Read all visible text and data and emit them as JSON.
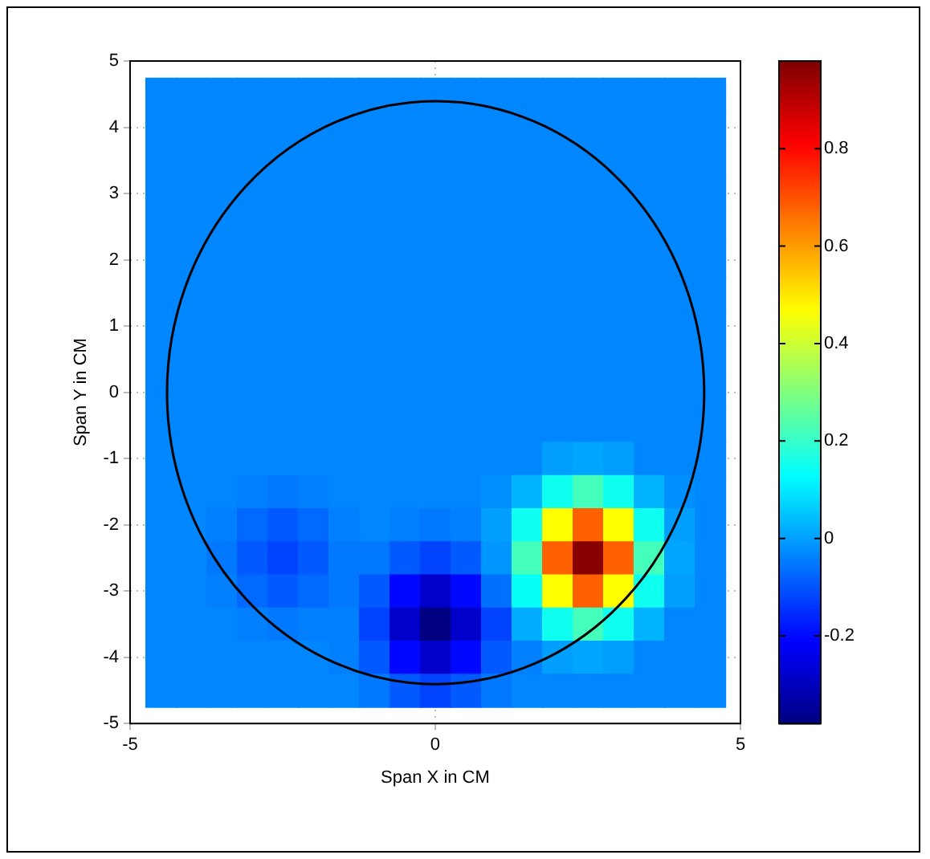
{
  "chart_data": {
    "type": "heatmap",
    "xlabel": "Span X in CM",
    "ylabel": "Span Y in CM",
    "x": [
      -4.5,
      -4,
      -3.5,
      -3,
      -2.5,
      -2,
      -1.5,
      -1,
      -0.5,
      0,
      0.5,
      1,
      1.5,
      2,
      2.5,
      3,
      3.5,
      4,
      4.5
    ],
    "y": [
      4.5,
      4,
      3.5,
      3,
      2.5,
      2,
      1.5,
      1,
      0.5,
      0,
      -0.5,
      -1,
      -1.5,
      -2,
      -2.5,
      -3,
      -3.5,
      -4,
      -4.5
    ],
    "cells": [
      [
        -0.03,
        -0.03,
        -0.03,
        -0.03,
        -0.03,
        -0.03,
        -0.03,
        -0.03,
        -0.03,
        -0.03,
        -0.03,
        -0.03,
        -0.03,
        -0.03,
        -0.03,
        -0.03,
        -0.03,
        -0.03,
        -0.03
      ],
      [
        -0.03,
        -0.03,
        -0.03,
        -0.03,
        -0.03,
        -0.03,
        -0.03,
        -0.03,
        -0.03,
        -0.03,
        -0.03,
        -0.03,
        -0.03,
        -0.03,
        -0.03,
        -0.03,
        -0.03,
        -0.03,
        -0.03
      ],
      [
        -0.03,
        -0.03,
        -0.03,
        -0.03,
        -0.03,
        -0.03,
        -0.03,
        -0.03,
        -0.03,
        -0.03,
        -0.03,
        -0.03,
        -0.03,
        -0.03,
        -0.03,
        -0.03,
        -0.03,
        -0.03,
        -0.03
      ],
      [
        -0.03,
        -0.03,
        -0.03,
        -0.03,
        -0.03,
        -0.03,
        -0.03,
        -0.03,
        -0.03,
        -0.03,
        -0.03,
        -0.03,
        -0.03,
        -0.03,
        -0.03,
        -0.03,
        -0.03,
        -0.03,
        -0.03
      ],
      [
        -0.03,
        -0.03,
        -0.03,
        -0.03,
        -0.03,
        -0.03,
        -0.03,
        -0.03,
        -0.03,
        -0.03,
        -0.03,
        -0.03,
        -0.03,
        -0.03,
        -0.03,
        -0.03,
        -0.03,
        -0.03,
        -0.03
      ],
      [
        -0.03,
        -0.03,
        -0.03,
        -0.03,
        -0.03,
        -0.03,
        -0.03,
        -0.03,
        -0.03,
        -0.03,
        -0.03,
        -0.03,
        -0.03,
        -0.03,
        -0.03,
        -0.03,
        -0.03,
        -0.03,
        -0.03
      ],
      [
        -0.03,
        -0.03,
        -0.03,
        -0.03,
        -0.03,
        -0.03,
        -0.03,
        -0.03,
        -0.03,
        -0.03,
        -0.03,
        -0.03,
        -0.03,
        -0.03,
        -0.03,
        -0.03,
        -0.03,
        -0.03,
        -0.03
      ],
      [
        -0.03,
        -0.03,
        -0.03,
        -0.03,
        -0.03,
        -0.03,
        -0.03,
        -0.03,
        -0.03,
        -0.03,
        -0.03,
        -0.03,
        -0.03,
        -0.03,
        -0.03,
        -0.03,
        -0.03,
        -0.03,
        -0.03
      ],
      [
        -0.03,
        -0.03,
        -0.03,
        -0.03,
        -0.03,
        -0.03,
        -0.03,
        -0.03,
        -0.03,
        -0.03,
        -0.03,
        -0.03,
        -0.03,
        -0.03,
        -0.03,
        -0.03,
        -0.03,
        -0.03,
        -0.03
      ],
      [
        -0.03,
        -0.03,
        -0.03,
        -0.03,
        -0.03,
        -0.03,
        -0.03,
        -0.03,
        -0.03,
        -0.03,
        -0.03,
        -0.03,
        -0.03,
        -0.03,
        -0.03,
        -0.03,
        -0.03,
        -0.03,
        -0.03
      ],
      [
        -0.03,
        -0.03,
        -0.03,
        -0.03,
        -0.03,
        -0.03,
        -0.03,
        -0.03,
        -0.03,
        -0.03,
        -0.03,
        -0.03,
        -0.03,
        -0.03,
        -0.03,
        -0.03,
        -0.03,
        -0.03,
        -0.03
      ],
      [
        -0.03,
        -0.03,
        -0.03,
        -0.03,
        -0.03,
        -0.03,
        -0.03,
        -0.03,
        -0.03,
        -0.03,
        -0.03,
        -0.03,
        -0.03,
        0.0,
        0.01,
        0.0,
        -0.03,
        -0.03,
        -0.03
      ],
      [
        -0.03,
        -0.03,
        -0.03,
        -0.04,
        -0.05,
        -0.04,
        -0.03,
        -0.03,
        -0.03,
        -0.03,
        -0.03,
        -0.02,
        0.03,
        0.15,
        0.22,
        0.15,
        0.03,
        -0.02,
        -0.03
      ],
      [
        -0.03,
        -0.03,
        -0.04,
        -0.07,
        -0.09,
        -0.07,
        -0.04,
        -0.03,
        -0.04,
        -0.05,
        -0.04,
        0.0,
        0.15,
        0.47,
        0.68,
        0.47,
        0.15,
        0.0,
        -0.03
      ],
      [
        -0.03,
        -0.03,
        -0.05,
        -0.09,
        -0.12,
        -0.09,
        -0.05,
        -0.05,
        -0.09,
        -0.12,
        -0.09,
        -0.01,
        0.22,
        0.68,
        0.97,
        0.68,
        0.22,
        0.01,
        -0.03
      ],
      [
        -0.03,
        -0.03,
        -0.04,
        -0.07,
        -0.09,
        -0.07,
        -0.05,
        -0.09,
        -0.2,
        -0.28,
        -0.2,
        -0.06,
        0.14,
        0.47,
        0.68,
        0.47,
        0.15,
        0.0,
        -0.03
      ],
      [
        -0.03,
        -0.03,
        -0.03,
        -0.04,
        -0.05,
        -0.04,
        -0.04,
        -0.12,
        -0.28,
        -0.38,
        -0.28,
        -0.12,
        0.02,
        0.15,
        0.22,
        0.15,
        0.03,
        -0.03,
        -0.03
      ],
      [
        -0.03,
        -0.03,
        -0.03,
        -0.03,
        -0.03,
        -0.03,
        -0.04,
        -0.09,
        -0.2,
        -0.28,
        -0.2,
        -0.09,
        -0.04,
        0.0,
        0.01,
        0.0,
        -0.03,
        -0.03,
        -0.03
      ],
      [
        -0.03,
        -0.03,
        -0.03,
        -0.03,
        -0.03,
        -0.03,
        -0.03,
        -0.05,
        -0.09,
        -0.12,
        -0.09,
        -0.05,
        -0.03,
        -0.03,
        -0.03,
        -0.03,
        -0.03,
        -0.03,
        -0.03
      ]
    ],
    "xlim": [
      -5,
      5
    ],
    "xticks": [
      -5,
      0,
      5
    ],
    "ylim": [
      -5,
      5
    ],
    "yticks": [
      -5,
      -4,
      -3,
      -2,
      -1,
      0,
      1,
      2,
      3,
      4,
      5
    ],
    "clim": [
      -0.38,
      0.98
    ],
    "cticks": [
      -0.2,
      0,
      0.2,
      0.4,
      0.6,
      0.8
    ],
    "grid": true,
    "legend": false
  }
}
